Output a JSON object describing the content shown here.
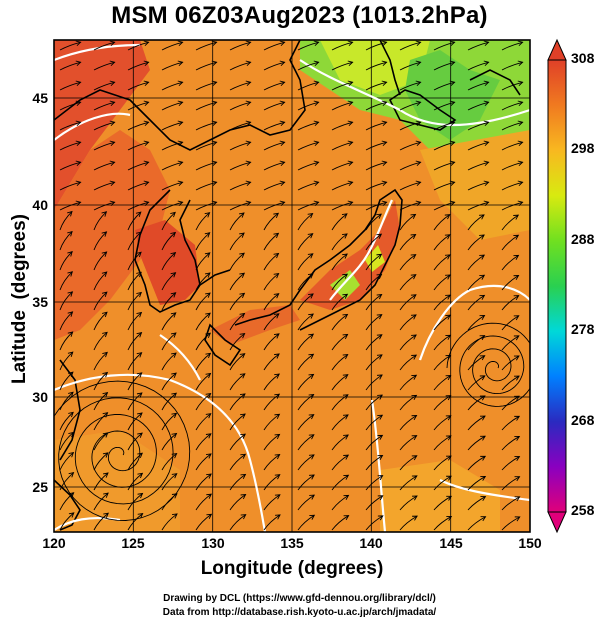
{
  "title": "MSM 06Z03Aug2023 (1013.2hPa)",
  "x_axis": {
    "label": "Longitude (degrees)",
    "ticks": [
      "120",
      "125",
      "130",
      "135",
      "140",
      "145",
      "150"
    ]
  },
  "y_axis": {
    "label": "Latitude  (degrees)",
    "ticks": [
      "25",
      "30",
      "35",
      "40",
      "45"
    ]
  },
  "colorbar": {
    "ticks": [
      "308",
      "298",
      "288",
      "278",
      "268",
      "258"
    ],
    "min": 258,
    "max": 308,
    "colors": [
      "#e0007a",
      "#8a00c0",
      "#2a2ac0",
      "#0080ff",
      "#00d8d8",
      "#2ad050",
      "#70e020",
      "#d8ea10",
      "#f8b820",
      "#f07a20",
      "#e04028"
    ]
  },
  "credits": {
    "line1": "Drawing by DCL (https://www.gfd-dennou.org/library/dcl/)",
    "line2": "Data from http://database.rish.kyoto-u.ac.jp/arch/jmadata/"
  },
  "colors": {
    "ocean": "#ef8f2a",
    "land_hot": "#e0502a",
    "land_cool": "#7fd63a",
    "coast": "#000000",
    "grid": "#000000",
    "contour": "#ffffff"
  }
}
